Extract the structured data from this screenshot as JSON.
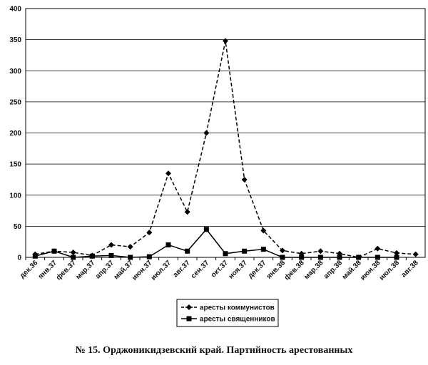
{
  "chart_data": {
    "type": "line",
    "caption": "№ 15. Орджоникидзевский край. Партийность арестованных",
    "categories": [
      "дек.36",
      "янв.37",
      "фев.37",
      "мар.37",
      "апр.37",
      "май.37",
      "июн.37",
      "июл.37",
      "авг.37",
      "сен.37",
      "окт.37",
      "ноя.37",
      "дек.37",
      "янв.38",
      "фев.38",
      "мар.38",
      "апр.38",
      "май.38",
      "июн.38",
      "июл.38",
      "авг.38"
    ],
    "series": [
      {
        "name": "аресты коммунистов",
        "color": "#000000",
        "linestyle": "dashed",
        "marker": "diamond",
        "values": [
          5,
          10,
          8,
          3,
          20,
          17,
          40,
          135,
          73,
          200,
          348,
          125,
          43,
          11,
          6,
          10,
          6,
          0,
          14,
          7,
          5
        ]
      },
      {
        "name": "аресты священников",
        "color": "#000000",
        "linestyle": "solid",
        "marker": "square",
        "values": [
          2,
          10,
          0,
          2,
          3,
          0,
          1,
          20,
          10,
          45,
          6,
          10,
          13,
          0,
          0,
          0,
          0,
          0,
          0,
          0,
          null
        ]
      }
    ],
    "ylim": [
      0,
      400
    ],
    "yticks": [
      0,
      50,
      100,
      150,
      200,
      250,
      300,
      350,
      400
    ],
    "grid": true,
    "legend": "bottom"
  }
}
